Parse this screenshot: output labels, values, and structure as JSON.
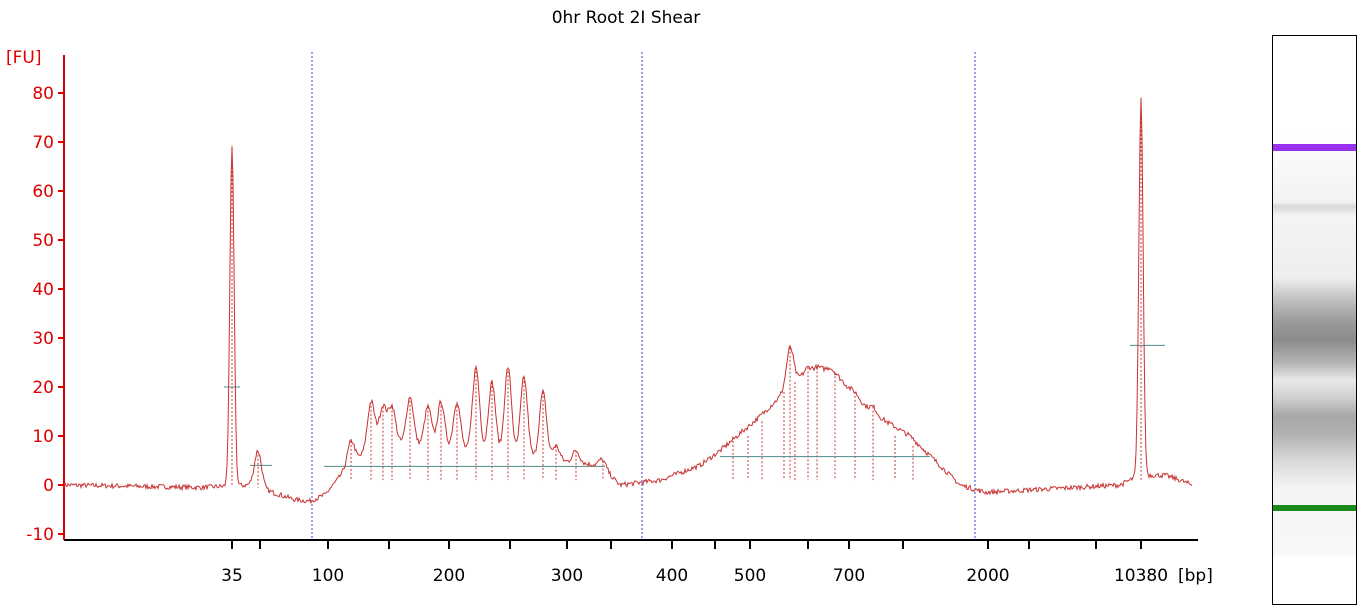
{
  "chart_data": {
    "type": "line",
    "title": "0hr Root 2I Shear",
    "ylabel": "[FU]",
    "xlabel": "[bp]",
    "ylim": [
      -12,
      87
    ],
    "yticks": [
      -10,
      0,
      10,
      20,
      30,
      40,
      50,
      60,
      70,
      80
    ],
    "xticks": [
      "35",
      "100",
      "200",
      "300",
      "400",
      "500",
      "700",
      "2000",
      "10380"
    ],
    "marker_peaks": [
      {
        "label": "35",
        "color": "#1a8a1a",
        "height": 69
      },
      {
        "label": "10380",
        "color": "#a040e0",
        "height": 79
      }
    ],
    "peak_labels": [
      {
        "label": "48",
        "height": 7
      },
      {
        "label": "115",
        "height": 9
      },
      {
        "label": "133",
        "height": 17
      },
      {
        "label": "142",
        "height": 16
      },
      {
        "label": "149",
        "height": 16
      },
      {
        "label": "163",
        "height": 18
      },
      {
        "label": "182",
        "height": 16
      },
      {
        "label": "191",
        "height": 17
      },
      {
        "label": "202",
        "height": 17
      },
      {
        "label": "221",
        "height": 24
      },
      {
        "label": "237",
        "height": 21
      },
      {
        "label": "249",
        "height": 24
      },
      {
        "label": "262",
        "height": 22
      },
      {
        "label": "278",
        "height": 19
      },
      {
        "label": "293",
        "height": 8
      },
      {
        "label": "309",
        "height": 7
      },
      {
        "label": "339",
        "height": 5
      },
      {
        "label": "474",
        "height": 9
      },
      {
        "label": "505",
        "height": 10
      },
      {
        "label": "532",
        "height": 13
      },
      {
        "label": "550",
        "height": 19
      },
      {
        "label": "563",
        "height": 28
      },
      {
        "label": "576",
        "height": 21
      },
      {
        "label": "603",
        "height": 24
      },
      {
        "label": "628",
        "height": 24
      },
      {
        "label": "649",
        "height": 23
      },
      {
        "label": "699",
        "height": 19
      },
      {
        "label": "824",
        "height": 16
      },
      {
        "label": "941",
        "height": 10
      },
      {
        "label": "1141",
        "height": 8
      }
    ],
    "grid": false,
    "legend": "none"
  }
}
